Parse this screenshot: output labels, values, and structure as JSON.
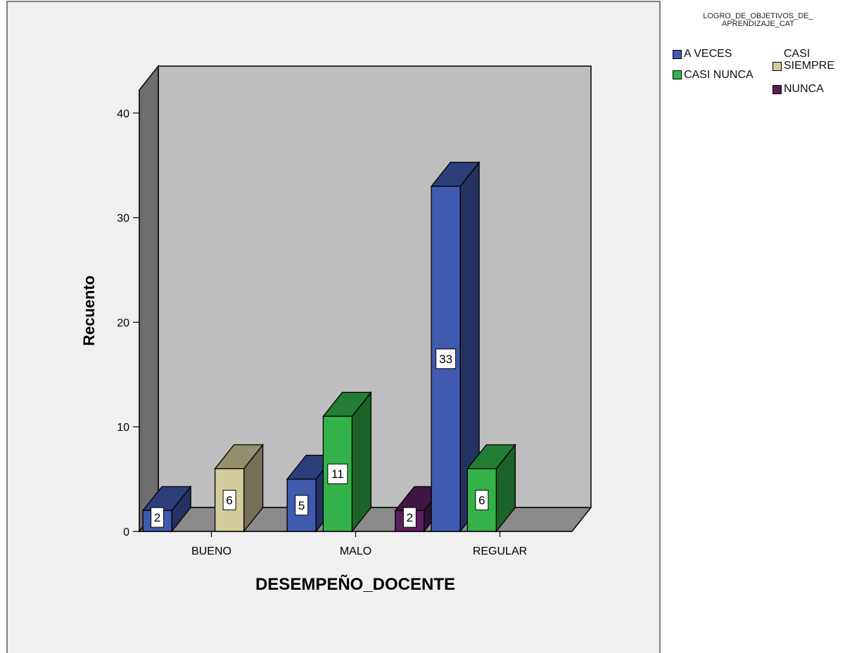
{
  "chart_data": {
    "type": "bar",
    "style": "3d-clustered",
    "categories": [
      "BUENO",
      "MALO",
      "REGULAR"
    ],
    "series": [
      {
        "name": "A VECES",
        "color": "#3F5AAE",
        "values": [
          2,
          5,
          33
        ]
      },
      {
        "name": "CASI NUNCA",
        "color": "#34B34A",
        "values": [
          null,
          11,
          6
        ]
      },
      {
        "name": "CASI SIEMPRE",
        "color": "#D3CC9C",
        "values": [
          6,
          null,
          null
        ]
      },
      {
        "name": "NUNCA",
        "color": "#5A1E5E",
        "values": [
          null,
          2,
          null
        ]
      }
    ],
    "xlabel": "DESEMPEÑO_DOCENTE",
    "ylabel": "Recuento",
    "ylim": [
      0,
      44
    ],
    "yticks": [
      0,
      10,
      20,
      30,
      40
    ],
    "legend_title": "LOGRO_DE_OBJETIVOS_DE_APRENDIZAJE_CAT",
    "legend_title_lines": [
      "LOGRO_DE_OBJETIVOS_DE_",
      "APRENDIZAJE_CAT"
    ],
    "legend_position": "right",
    "data_labels": true,
    "colors": {
      "plot_background": "#F0F0F0",
      "wall": "#BEBEBE",
      "side_wall": "#6E6E6E",
      "floor": "#8A8A8A"
    }
  }
}
